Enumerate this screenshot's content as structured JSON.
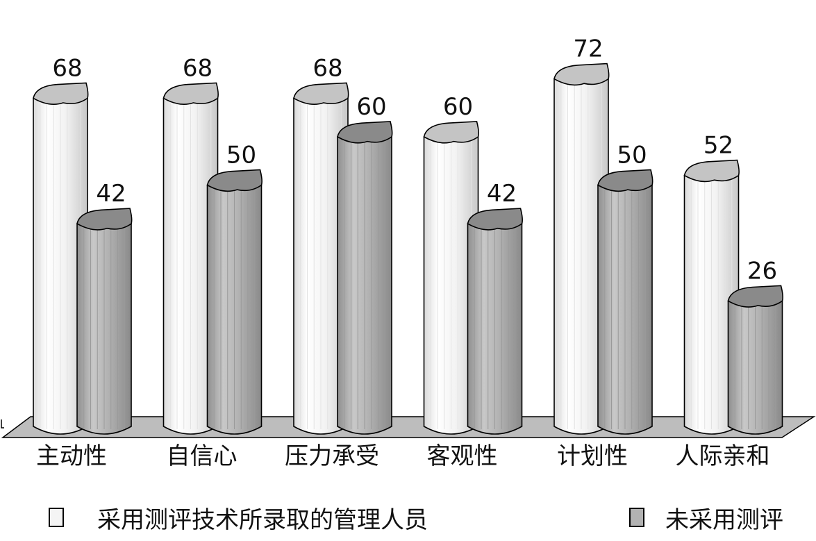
{
  "chart_data": {
    "type": "bar",
    "style": "3d-cylinder",
    "categories": [
      "主动性",
      "自信心",
      "压力承受",
      "客观性",
      "计划性",
      "人际亲和"
    ],
    "series": [
      {
        "name": "采用测评技术所录取的管理人员",
        "values": [
          68,
          68,
          68,
          60,
          72,
          52
        ],
        "color": "#f4f4f4",
        "top_color": "#c4c4c4"
      },
      {
        "name": "未采用测评",
        "values": [
          42,
          50,
          60,
          42,
          50,
          26
        ],
        "color": "#b2b2b2",
        "top_color": "#8a8a8a"
      }
    ],
    "ylim": [
      0,
      76
    ],
    "grid": false,
    "legend_position": "bottom",
    "floor_color": "#bdbdbd"
  }
}
